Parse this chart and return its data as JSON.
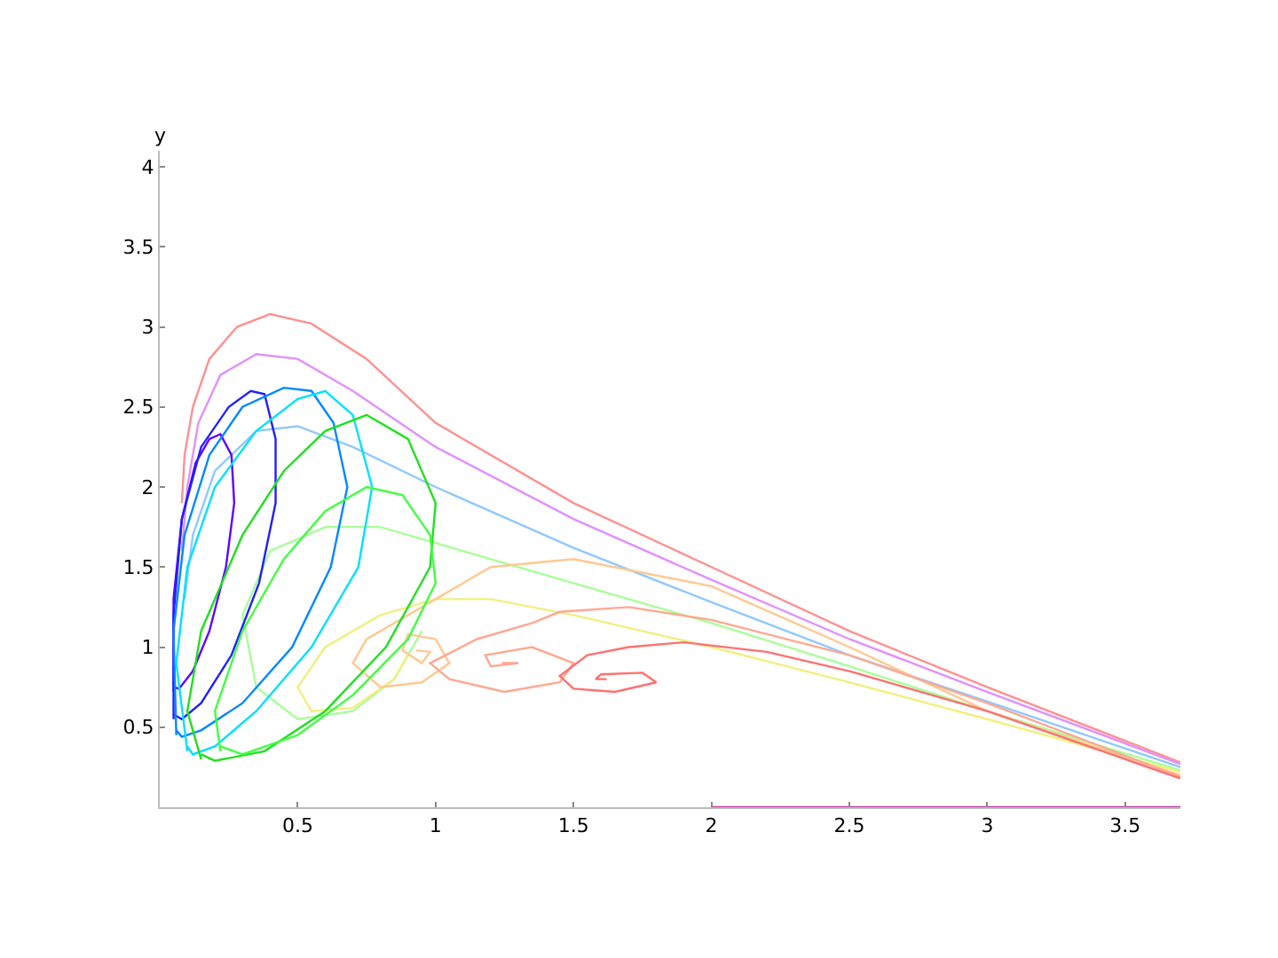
{
  "chart_data": {
    "type": "line",
    "ylabel": "y",
    "xlim": [
      0,
      3.7
    ],
    "ylim": [
      0,
      4.1
    ],
    "xticks": [
      0.5,
      1,
      1.5,
      2,
      2.5,
      3,
      3.5
    ],
    "yticks": [
      0.5,
      1,
      1.5,
      2,
      2.5,
      3,
      3.5,
      4
    ],
    "grid": false,
    "marker": "none",
    "line_style": "solid",
    "series": [
      {
        "color": "#ff9090",
        "x": [
          3.7,
          3.0,
          2.5,
          2.0,
          1.5,
          1.0,
          0.75,
          0.55,
          0.4,
          0.28,
          0.18,
          0.12,
          0.09,
          0.08
        ],
        "values": [
          0.28,
          0.75,
          1.1,
          1.5,
          1.9,
          2.4,
          2.8,
          3.02,
          3.08,
          3.0,
          2.8,
          2.5,
          2.2,
          1.9
        ]
      },
      {
        "color": "#e090ff",
        "x": [
          3.7,
          3.0,
          2.5,
          2.0,
          1.5,
          1.0,
          0.7,
          0.5,
          0.35,
          0.22,
          0.14,
          0.1,
          0.08
        ],
        "values": [
          0.27,
          0.72,
          1.05,
          1.42,
          1.8,
          2.25,
          2.6,
          2.8,
          2.83,
          2.7,
          2.4,
          2.0,
          1.6
        ]
      },
      {
        "color": "#90c8ff",
        "x": [
          3.7,
          3.0,
          2.5,
          2.0,
          1.5,
          1.0,
          0.7,
          0.5,
          0.35,
          0.2,
          0.12,
          0.09
        ],
        "values": [
          0.25,
          0.66,
          0.95,
          1.28,
          1.62,
          2.0,
          2.25,
          2.38,
          2.35,
          2.1,
          1.7,
          1.3
        ]
      },
      {
        "color": "#a8ff98",
        "x": [
          3.7,
          3.0,
          2.5,
          2.0,
          1.5,
          1.0,
          0.8,
          0.6,
          0.4,
          0.3,
          0.35,
          0.5,
          0.7,
          0.85,
          0.95
        ],
        "values": [
          0.23,
          0.6,
          0.88,
          1.15,
          1.4,
          1.65,
          1.75,
          1.75,
          1.6,
          1.2,
          0.75,
          0.55,
          0.6,
          0.8,
          1.1
        ]
      },
      {
        "color": "#f0f080",
        "x": [
          3.7,
          3.0,
          2.5,
          2.0,
          1.5,
          1.2,
          1.0,
          0.8,
          0.6,
          0.5,
          0.55,
          0.7,
          0.85,
          0.9
        ],
        "values": [
          0.22,
          0.55,
          0.78,
          1.0,
          1.2,
          1.3,
          1.3,
          1.2,
          1.0,
          0.75,
          0.6,
          0.62,
          0.8,
          0.95
        ]
      },
      {
        "color": "#ffc890",
        "x": [
          3.7,
          3.0,
          2.5,
          2.0,
          1.5,
          1.2,
          1.05,
          0.9,
          0.75,
          0.7,
          0.8,
          0.95,
          1.05,
          1.0,
          0.9,
          0.88,
          0.95,
          0.98,
          0.93
        ],
        "values": [
          0.2,
          0.6,
          1.0,
          1.38,
          1.55,
          1.5,
          1.35,
          1.2,
          1.05,
          0.9,
          0.75,
          0.78,
          0.9,
          1.05,
          1.08,
          0.98,
          0.9,
          0.97,
          0.98
        ]
      },
      {
        "color": "#ffa890",
        "x": [
          3.7,
          3.0,
          2.5,
          2.0,
          1.7,
          1.45,
          1.35,
          1.15,
          0.98,
          1.05,
          1.25,
          1.45,
          1.5,
          1.35,
          1.18,
          1.2,
          1.3,
          1.24
        ],
        "values": [
          0.19,
          0.65,
          0.95,
          1.17,
          1.25,
          1.22,
          1.15,
          1.05,
          0.9,
          0.8,
          0.72,
          0.78,
          0.9,
          1.0,
          0.95,
          0.88,
          0.9,
          0.9
        ]
      },
      {
        "color": "#ff7070",
        "x": [
          3.7,
          3.0,
          2.5,
          2.2,
          1.9,
          1.7,
          1.55,
          1.45,
          1.5,
          1.65,
          1.8,
          1.75,
          1.6,
          1.58,
          1.62
        ],
        "values": [
          0.18,
          0.6,
          0.85,
          0.97,
          1.03,
          1.0,
          0.95,
          0.82,
          0.74,
          0.72,
          0.78,
          0.84,
          0.83,
          0.8,
          0.8
        ]
      },
      {
        "color": "#6000ff",
        "x": [
          0.05,
          0.05,
          0.08,
          0.13,
          0.18,
          0.22,
          0.26,
          0.27,
          0.24,
          0.18,
          0.12,
          0.07,
          0.05
        ],
        "values": [
          0.72,
          1.3,
          1.8,
          2.15,
          2.3,
          2.33,
          2.2,
          1.9,
          1.5,
          1.1,
          0.85,
          0.74,
          0.75
        ]
      },
      {
        "color": "#2020ff",
        "x": [
          0.05,
          0.05,
          0.08,
          0.15,
          0.25,
          0.33,
          0.38,
          0.42,
          0.42,
          0.36,
          0.26,
          0.15,
          0.08,
          0.05
        ],
        "values": [
          0.55,
          1.2,
          1.8,
          2.25,
          2.5,
          2.6,
          2.58,
          2.3,
          1.9,
          1.4,
          0.95,
          0.65,
          0.55,
          0.58
        ]
      },
      {
        "color": "#0088ff",
        "x": [
          0.06,
          0.05,
          0.09,
          0.18,
          0.3,
          0.45,
          0.55,
          0.63,
          0.68,
          0.62,
          0.48,
          0.3,
          0.15,
          0.08,
          0.06
        ],
        "values": [
          0.45,
          1.1,
          1.7,
          2.2,
          2.5,
          2.62,
          2.6,
          2.4,
          2.0,
          1.5,
          1.0,
          0.65,
          0.48,
          0.44,
          0.48
        ]
      },
      {
        "color": "#00e0ff",
        "x": [
          0.1,
          0.06,
          0.1,
          0.2,
          0.35,
          0.5,
          0.6,
          0.7,
          0.77,
          0.72,
          0.55,
          0.35,
          0.2,
          0.12,
          0.1
        ],
        "values": [
          0.35,
          0.9,
          1.5,
          2.0,
          2.35,
          2.55,
          2.6,
          2.45,
          2.0,
          1.5,
          1.0,
          0.6,
          0.38,
          0.33,
          0.38
        ]
      },
      {
        "color": "#20e020",
        "x": [
          0.15,
          0.1,
          0.15,
          0.3,
          0.45,
          0.6,
          0.75,
          0.9,
          1.0,
          0.98,
          0.82,
          0.6,
          0.38,
          0.2,
          0.15
        ],
        "values": [
          0.3,
          0.6,
          1.1,
          1.7,
          2.1,
          2.35,
          2.45,
          2.3,
          1.9,
          1.5,
          1.0,
          0.6,
          0.35,
          0.29,
          0.33
        ]
      },
      {
        "color": "#40ff40",
        "x": [
          0.22,
          0.2,
          0.3,
          0.45,
          0.6,
          0.75,
          0.88,
          0.98,
          1.0,
          0.9,
          0.7,
          0.5,
          0.3,
          0.22
        ],
        "values": [
          0.35,
          0.6,
          1.1,
          1.55,
          1.85,
          2.0,
          1.95,
          1.7,
          1.4,
          1.05,
          0.7,
          0.45,
          0.33,
          0.38
        ]
      },
      {
        "color": "#c040a0",
        "x": [
          2.0,
          2.5,
          3.0,
          3.5,
          3.7
        ],
        "values": [
          0.0,
          0.0,
          0.0,
          0.0,
          0.0
        ]
      }
    ]
  }
}
